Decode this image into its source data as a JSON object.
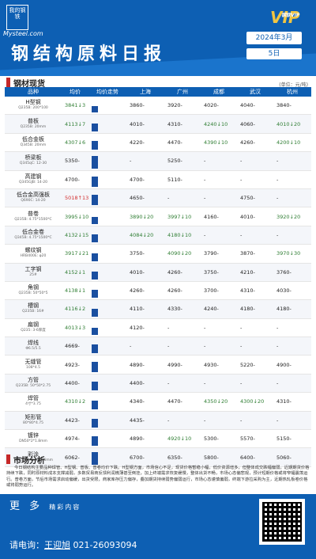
{
  "header": {
    "logo_text": "我的钢铁",
    "logo_sub": "Mysteel.com",
    "vip_text": "VIP",
    "vip_sub": "钢联VIP",
    "title": "钢结构原料日报",
    "date": "2024年3月",
    "day": "5日"
  },
  "section1": {
    "title": "钢材现货",
    "unit": "(单位：元/吨)"
  },
  "table": {
    "headers": [
      "品种",
      "均价",
      "均价走势",
      "上海",
      "广州",
      "成都",
      "武汉",
      "杭州"
    ],
    "rows": [
      {
        "name": "H型钢",
        "spec": "Q235B: 200*100",
        "avg": "3841↓3",
        "trend": 0.45,
        "sh": "3860-",
        "gz": "3920-",
        "cd": "4020-",
        "wh": "4040-",
        "hz": "3840-"
      },
      {
        "name": "普板",
        "spec": "Q235B: 20mm",
        "avg": "4113↓7",
        "trend": 0.55,
        "sh": "4010-",
        "gz": "4310-",
        "cd": "4240↓10",
        "wh": "4060-",
        "hz": "4010↓20"
      },
      {
        "name": "低合金板",
        "spec": "Q345B: 20mm",
        "avg": "4307↓6",
        "trend": 0.6,
        "sh": "4220-",
        "gz": "4470-",
        "cd": "4390↓10",
        "wh": "4260-",
        "hz": "4200↓10"
      },
      {
        "name": "桥梁板",
        "spec": "Q345qC: 12-30",
        "avg": "5350-",
        "trend": 0.85,
        "sh": "-",
        "gz": "5250-",
        "cd": "-",
        "wh": "-",
        "hz": "-"
      },
      {
        "name": "高建钢",
        "spec": "Q345GJB: 14-20",
        "avg": "4700-",
        "trend": 0.7,
        "sh": "4700-",
        "gz": "5110-",
        "cd": "-",
        "wh": "-",
        "hz": "-"
      },
      {
        "name": "低合金高强板",
        "spec": "Q690C: 14-20",
        "avg": "5018↑13",
        "trend": 0.75,
        "sh": "4650-",
        "gz": "-",
        "cd": "-",
        "wh": "4750-",
        "hz": "-"
      },
      {
        "name": "普卷",
        "spec": "Q235B: 4.75*1500*C",
        "avg": "3995↓10",
        "trend": 0.5,
        "sh": "3890↓20",
        "gz": "3997↓10",
        "cd": "4160-",
        "wh": "4010-",
        "hz": "3920↓20"
      },
      {
        "name": "低合金卷",
        "spec": "Q345B: 4.75*1500*C",
        "avg": "4132↓15",
        "trend": 0.55,
        "sh": "4084↓20",
        "gz": "4180↓10",
        "cd": "-",
        "wh": "-",
        "hz": "-"
      },
      {
        "name": "螺纹钢",
        "spec": "HRB400E: φ20",
        "avg": "3917↓21",
        "trend": 0.5,
        "sh": "3750-",
        "gz": "4090↓20",
        "cd": "3790-",
        "wh": "3870-",
        "hz": "3970↓30"
      },
      {
        "name": "工字钢",
        "spec": "25#",
        "avg": "4152↓1",
        "trend": 0.55,
        "sh": "4010-",
        "gz": "4260-",
        "cd": "3750-",
        "wh": "4210-",
        "hz": "3760-"
      },
      {
        "name": "角钢",
        "spec": "Q235B: 50*50*5",
        "avg": "4138↓1",
        "trend": 0.55,
        "sh": "4260-",
        "gz": "4260-",
        "cd": "3700-",
        "wh": "4310-",
        "hz": "4030-"
      },
      {
        "name": "槽钢",
        "spec": "Q235B: 16#",
        "avg": "4116↓2",
        "trend": 0.55,
        "sh": "4110-",
        "gz": "4330-",
        "cd": "4240-",
        "wh": "4180-",
        "hz": "4180-"
      },
      {
        "name": "扁钢",
        "spec": "Q235: 3-6厚度",
        "avg": "4013↓3",
        "trend": 0.5,
        "sh": "4120-",
        "gz": "-",
        "cd": "-",
        "wh": "-",
        "hz": "-"
      },
      {
        "name": "焊线",
        "spec": "Φ6.5/5.5",
        "avg": "4669-",
        "trend": 0.65,
        "sh": "-",
        "gz": "-",
        "cd": "-",
        "wh": "-",
        "hz": "-"
      },
      {
        "name": "无缝管",
        "spec": "108*4.5",
        "avg": "4923-",
        "trend": 0.7,
        "sh": "4890-",
        "gz": "4990-",
        "cd": "4930-",
        "wh": "5220-",
        "hz": "4900-"
      },
      {
        "name": "方管",
        "spec": "Q235B: 50*50*2.75",
        "avg": "4400-",
        "trend": 0.6,
        "sh": "4400-",
        "gz": "-",
        "cd": "-",
        "wh": "-",
        "hz": "-"
      },
      {
        "name": "焊管",
        "spec": "4寸*3.75",
        "avg": "4310↓2",
        "trend": 0.6,
        "sh": "4340-",
        "gz": "4470-",
        "cd": "4350↓20",
        "wh": "4300↓20",
        "hz": "4310-"
      },
      {
        "name": "矩形管",
        "spec": "80*80*4.75",
        "avg": "4423-",
        "trend": 0.6,
        "sh": "4435-",
        "gz": "-",
        "cd": "-",
        "wh": "-",
        "hz": "-"
      },
      {
        "name": "镀锌",
        "spec": "DN50*2*1.8mm",
        "avg": "4974-",
        "trend": 0.7,
        "sh": "4890-",
        "gz": "4920↓10",
        "cd": "5300-",
        "wh": "5570-",
        "hz": "5150-"
      },
      {
        "name": "彩涂",
        "spec": "TDC51D+Z: 0.476mm",
        "avg": "6062-",
        "trend": 0.85,
        "sh": "6700-",
        "gz": "6350-",
        "cd": "5800-",
        "wh": "6400-",
        "hz": "5060-"
      }
    ]
  },
  "section2": {
    "title": "市场分析",
    "text": "今日钢结构主要品种焊管、H型钢、普板、普卷均价下跌。H型钢方面，市场信心不足，现货价格暂稳小幅，低价资源增多，但整体成交跌幅偏弱，近期期货价格持续下跌，同时原材料成本支撑减弱，多数贸易商反馈利润微薄甚至倒挂，加上终端需求恢复缓慢，整体出货不畅，市场心态偏悲观，预计短期价格或将窄幅震荡运行。普卷方面，节后市场需求启动偏缓，出货受限，商家库存压力偏存，叠加期货持续弱势偏弱运行，市场心态谨慎偏弱，终端下游拉采购为主，近期热轧板卷价格或将弱势运行。"
  },
  "footer": {
    "more": "更 多",
    "more_sub": "精彩内容",
    "contact_label": "请电询：",
    "contact_name": "王迎旭",
    "contact_phone": "021-26093094"
  },
  "colors": {
    "primary": "#0d5fb3",
    "accent": "#c62828",
    "vip_gold": "#f1c541",
    "up": "#d32f2f",
    "down": "#2e7d32"
  }
}
